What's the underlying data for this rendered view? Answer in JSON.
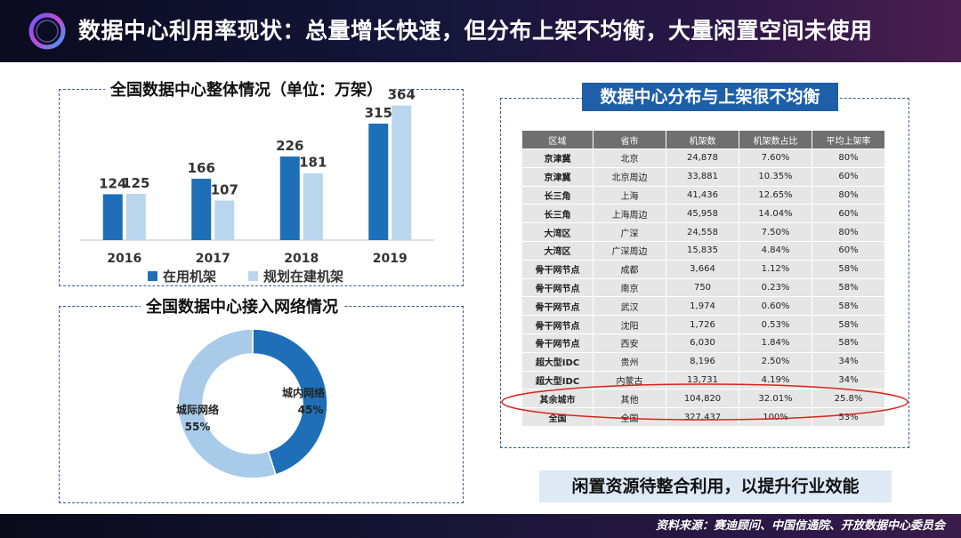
{
  "header": {
    "title": "数据中心利用率现状：总量增长快速，但分布上架不均衡，大量闲置空间未使用"
  },
  "chart_data": [
    {
      "type": "bar",
      "title": "全国数据中心整体情况（单位：万架）",
      "categories": [
        "2016",
        "2017",
        "2018",
        "2019"
      ],
      "series": [
        {
          "name": "在用机架",
          "values": [
            124,
            166,
            226,
            315
          ],
          "color": "#1e6fb8"
        },
        {
          "name": "规划在建机架",
          "values": [
            125,
            107,
            181,
            364
          ],
          "color": "#b9d6ee"
        }
      ],
      "ylim": [
        0,
        380
      ],
      "legend": "bottom",
      "grid": false
    },
    {
      "type": "pie",
      "title": "全国数据中心接入网络情况",
      "slices": [
        {
          "name": "城内网络",
          "value": 45,
          "label": "45%",
          "color": "#1e6fb8"
        },
        {
          "name": "城际网络",
          "value": 55,
          "label": "55%",
          "color": "#a9cbea"
        }
      ]
    }
  ],
  "table": {
    "title": "数据中心分布与上架很不均衡",
    "headers": [
      "区域",
      "省市",
      "机架数",
      "机架数占比",
      "平均上架率"
    ],
    "rows": [
      [
        "京津冀",
        "北京",
        "24,878",
        "7.60%",
        "80%"
      ],
      [
        "京津冀",
        "北京周边",
        "33,881",
        "10.35%",
        "60%"
      ],
      [
        "长三角",
        "上海",
        "41,436",
        "12.65%",
        "80%"
      ],
      [
        "长三角",
        "上海周边",
        "45,958",
        "14.04%",
        "60%"
      ],
      [
        "大湾区",
        "广深",
        "24,558",
        "7.50%",
        "80%"
      ],
      [
        "大湾区",
        "广深周边",
        "15,835",
        "4.84%",
        "60%"
      ],
      [
        "骨干网节点",
        "成都",
        "3,664",
        "1.12%",
        "58%"
      ],
      [
        "骨干网节点",
        "南京",
        "750",
        "0.23%",
        "58%"
      ],
      [
        "骨干网节点",
        "武汉",
        "1,974",
        "0.60%",
        "58%"
      ],
      [
        "骨干网节点",
        "沈阳",
        "1,726",
        "0.53%",
        "58%"
      ],
      [
        "骨干网节点",
        "西安",
        "6,030",
        "1.84%",
        "58%"
      ],
      [
        "超大型IDC",
        "贵州",
        "8,196",
        "2.50%",
        "34%"
      ],
      [
        "超大型IDC",
        "内蒙古",
        "13,731",
        "4.19%",
        "34%"
      ],
      [
        "其余城市",
        "其他",
        "104,820",
        "32.01%",
        "25.8%"
      ],
      [
        "全国",
        "全国",
        "327,437",
        "100%",
        "53%"
      ]
    ],
    "highlight_row": "其余城市",
    "highlight_color": "#d9241c"
  },
  "conclusion": "闲置资源待整合利用，以提升行业效能",
  "footer": {
    "source": "资料来源：赛迪顾问、中国信通院、开放数据中心委员会"
  }
}
